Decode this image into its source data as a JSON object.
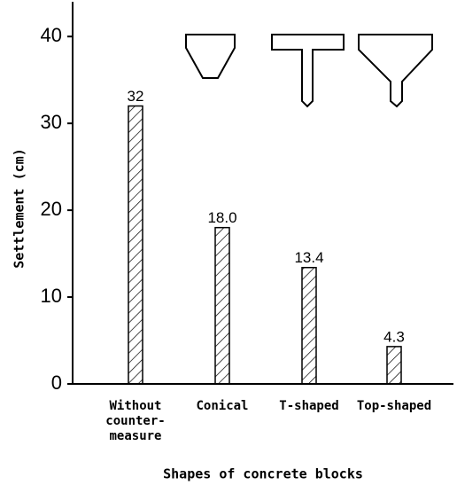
{
  "chart_data": {
    "type": "bar",
    "x_label": "Shapes of concrete blocks",
    "y_label": "Settlement (cm)",
    "categories": [
      "Without\ncounter-\nmeasure",
      "Conical",
      "T-shaped",
      "Top-shaped"
    ],
    "values": [
      32,
      18,
      13.4,
      4.3
    ],
    "value_labels": [
      "32",
      "18.0",
      "13.4",
      "4.3"
    ],
    "color": "#000000",
    "ylim": [
      0,
      44
    ],
    "yticks": [
      0,
      10,
      20,
      30,
      40
    ],
    "grid": false
  }
}
